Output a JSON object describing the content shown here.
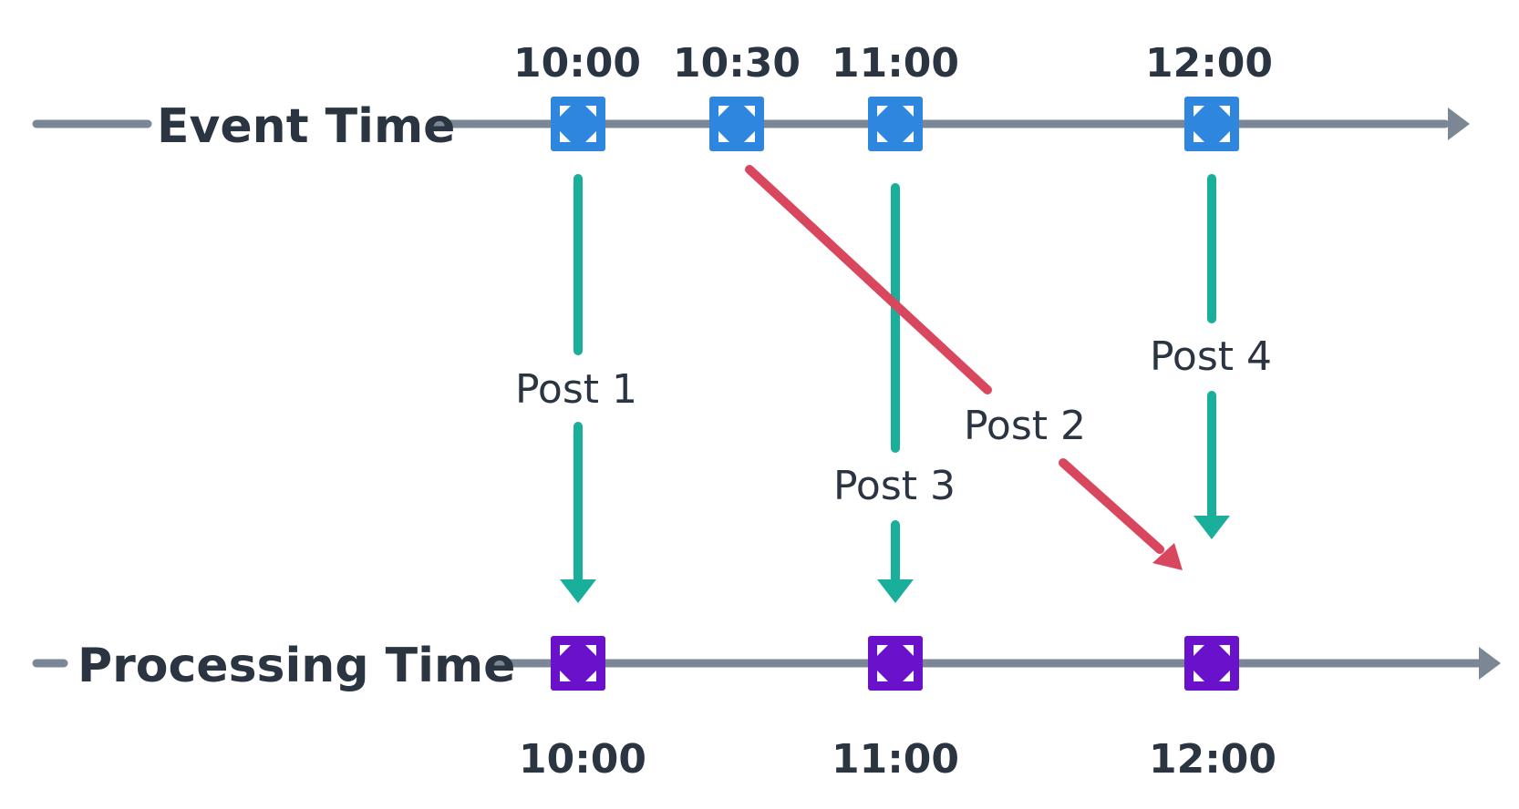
{
  "event_axis": {
    "label": "Event Time",
    "ticks": [
      "10:00",
      "10:30",
      "11:00",
      "12:00"
    ]
  },
  "processing_axis": {
    "label": "Processing Time",
    "ticks": [
      "10:00",
      "11:00",
      "12:00"
    ]
  },
  "posts": [
    {
      "label": "Post 1",
      "event_time": "10:00",
      "processing_time": "10:00",
      "late": false
    },
    {
      "label": "Post 2",
      "event_time": "10:30",
      "processing_time": "12:00",
      "late": true
    },
    {
      "label": "Post 3",
      "event_time": "11:00",
      "processing_time": "11:00",
      "late": false
    },
    {
      "label": "Post 4",
      "event_time": "12:00",
      "processing_time": "12:00",
      "late": false
    }
  ],
  "colors": {
    "axis": "#7b8794",
    "text": "#2b3441",
    "event_marker": "#2e86de",
    "processing_marker": "#6a11cb",
    "on_time_arrow": "#1aaf9a",
    "late_arrow": "#d9475e"
  }
}
